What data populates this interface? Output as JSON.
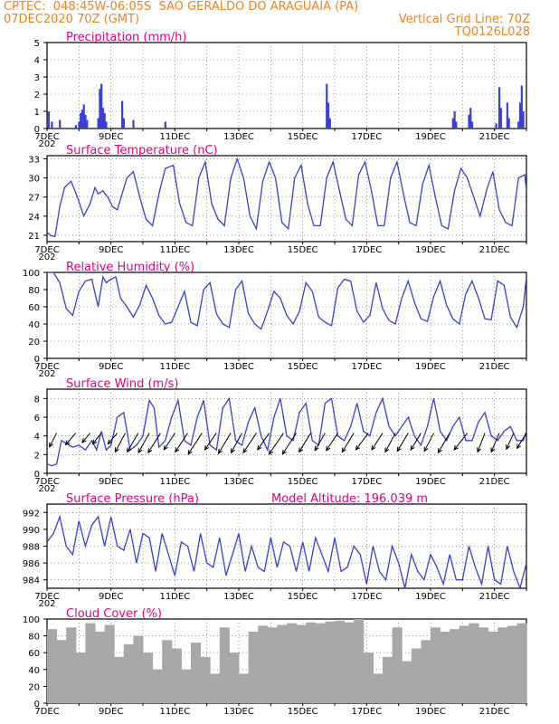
{
  "header": {
    "line1": "CPTEC:  048:45W-06:05S  SAO GERALDO DO ARAGUAIA (PA)",
    "line2_left": "07DEC2020 70Z (GMT)",
    "line2_right": "Vertical Grid Line: 70Z",
    "line3_right": "TQ0126L028"
  },
  "x_axis": {
    "tick_labels": [
      "7DEC",
      "9DEC",
      "11DEC",
      "13DEC",
      "15DEC",
      "17DEC",
      "19DEC",
      "21DEC"
    ],
    "overlap_label": "202"
  },
  "colors": {
    "line": "#3a3fd6",
    "title": "#e6007e",
    "header": "#f0821e",
    "cloud": "#a8a8a8"
  },
  "chart_data": [
    {
      "type": "bar",
      "title": "Precipitation (mm/h)",
      "ylim": [
        0,
        5
      ],
      "yticks": [
        "0",
        "1",
        "2",
        "3",
        "4",
        "5"
      ],
      "x_unit": "days since 7DEC 00Z",
      "bars": [
        [
          0.05,
          1.0
        ],
        [
          0.15,
          0.4
        ],
        [
          0.4,
          0.5
        ],
        [
          0.9,
          0.2
        ],
        [
          1.0,
          0.4
        ],
        [
          1.05,
          0.9
        ],
        [
          1.1,
          1.1
        ],
        [
          1.15,
          1.4
        ],
        [
          1.2,
          0.8
        ],
        [
          1.25,
          0.5
        ],
        [
          1.6,
          0.6
        ],
        [
          1.65,
          2.3
        ],
        [
          1.7,
          2.6
        ],
        [
          1.75,
          1.2
        ],
        [
          1.8,
          0.9
        ],
        [
          1.85,
          0.4
        ],
        [
          2.35,
          1.6
        ],
        [
          2.4,
          0.6
        ],
        [
          2.7,
          0.5
        ],
        [
          3.7,
          0.4
        ],
        [
          8.75,
          2.6
        ],
        [
          8.8,
          1.5
        ],
        [
          8.85,
          0.6
        ],
        [
          12.7,
          0.6
        ],
        [
          12.75,
          1.0
        ],
        [
          12.8,
          0.4
        ],
        [
          13.2,
          0.8
        ],
        [
          13.25,
          1.2
        ],
        [
          13.3,
          0.4
        ],
        [
          14.05,
          0.3
        ],
        [
          14.15,
          2.4
        ],
        [
          14.2,
          1.2
        ],
        [
          14.4,
          1.5
        ],
        [
          14.45,
          0.6
        ],
        [
          14.75,
          0.4
        ],
        [
          14.8,
          1.5
        ],
        [
          14.85,
          2.5
        ],
        [
          14.9,
          1.0
        ]
      ]
    },
    {
      "type": "line",
      "title": "Surface Temperature (nC)",
      "ylim": [
        20,
        33.5
      ],
      "yticks": [
        "21",
        "24",
        "27",
        "30",
        "33"
      ],
      "x": [
        0,
        0.1,
        0.25,
        0.4,
        0.55,
        0.75,
        0.95,
        1.15,
        1.35,
        1.5,
        1.6,
        1.75,
        1.9,
        2.05,
        2.2,
        2.35,
        2.5,
        2.7,
        2.9,
        3.1,
        3.3,
        3.5,
        3.7,
        3.95,
        4.15,
        4.35,
        4.55,
        4.75,
        4.95,
        5.15,
        5.35,
        5.55,
        5.75,
        5.95,
        6.15,
        6.35,
        6.55,
        6.75,
        6.95,
        7.15,
        7.35,
        7.55,
        7.75,
        7.95,
        8.15,
        8.35,
        8.55,
        8.75,
        8.95,
        9.15,
        9.35,
        9.55,
        9.75,
        9.95,
        10.15,
        10.35,
        10.55,
        10.75,
        10.95,
        11.15,
        11.35,
        11.55,
        11.75,
        11.95,
        12.15,
        12.35,
        12.55,
        12.75,
        12.95,
        13.15,
        13.35,
        13.55,
        13.75,
        13.95,
        14.15,
        14.35,
        14.55,
        14.75,
        14.95,
        15.0
      ],
      "values": [
        21.5,
        21,
        20.8,
        25.5,
        28.5,
        29.5,
        27,
        24,
        26,
        28.5,
        27.5,
        28,
        27,
        25.5,
        25,
        27.5,
        30,
        31,
        27,
        23.5,
        22.5,
        27.5,
        31.5,
        32,
        26,
        23,
        22.5,
        30,
        32.5,
        26,
        23.5,
        22.5,
        30,
        33,
        30,
        24,
        22,
        29.5,
        32.5,
        30,
        23,
        22,
        30,
        32,
        26,
        22.5,
        22.5,
        30,
        32.5,
        28,
        23.5,
        22.5,
        30.5,
        32.5,
        28,
        22.5,
        22.5,
        30,
        32.5,
        27.5,
        23,
        22.5,
        29,
        32,
        27,
        22.5,
        22,
        28,
        31.5,
        30,
        27,
        24,
        28,
        31,
        25,
        23,
        22.5,
        30,
        30.5,
        28
      ]
    },
    {
      "type": "line",
      "title": "Relative Humidity (%)",
      "ylim": [
        0,
        100
      ],
      "yticks": [
        "0",
        "20",
        "40",
        "60",
        "80",
        "100"
      ],
      "x": [
        0,
        0.2,
        0.4,
        0.6,
        0.8,
        1.0,
        1.2,
        1.4,
        1.6,
        1.75,
        1.85,
        2.0,
        2.15,
        2.3,
        2.5,
        2.7,
        2.9,
        3.1,
        3.3,
        3.5,
        3.7,
        3.9,
        4.1,
        4.3,
        4.5,
        4.7,
        4.9,
        5.1,
        5.3,
        5.5,
        5.7,
        5.9,
        6.1,
        6.3,
        6.5,
        6.7,
        6.9,
        7.1,
        7.3,
        7.5,
        7.7,
        7.9,
        8.1,
        8.3,
        8.5,
        8.7,
        8.9,
        9.1,
        9.3,
        9.5,
        9.7,
        9.9,
        10.1,
        10.3,
        10.5,
        10.7,
        10.9,
        11.1,
        11.3,
        11.5,
        11.7,
        11.9,
        12.1,
        12.3,
        12.5,
        12.7,
        12.9,
        13.1,
        13.3,
        13.5,
        13.7,
        13.9,
        14.1,
        14.3,
        14.5,
        14.7,
        14.9,
        15.0
      ],
      "values": [
        100,
        100,
        88,
        58,
        50,
        78,
        90,
        92,
        60,
        95,
        88,
        92,
        95,
        70,
        60,
        48,
        62,
        85,
        70,
        50,
        40,
        42,
        60,
        78,
        42,
        38,
        80,
        88,
        52,
        40,
        36,
        80,
        90,
        52,
        40,
        34,
        55,
        78,
        70,
        50,
        40,
        55,
        88,
        78,
        48,
        42,
        38,
        82,
        92,
        90,
        55,
        42,
        50,
        88,
        58,
        44,
        40,
        70,
        90,
        65,
        46,
        43,
        72,
        90,
        62,
        46,
        40,
        75,
        90,
        70,
        46,
        45,
        90,
        85,
        48,
        36,
        60,
        95
      ]
    },
    {
      "type": "line",
      "title": "Surface Wind (m/s)",
      "ylim": [
        0,
        9
      ],
      "yticks": [
        "0",
        "2",
        "4",
        "6",
        "8"
      ],
      "x": [
        0,
        0.15,
        0.3,
        0.45,
        0.6,
        0.8,
        1.0,
        1.2,
        1.4,
        1.55,
        1.7,
        1.85,
        2.0,
        2.2,
        2.4,
        2.6,
        2.8,
        3.0,
        3.2,
        3.35,
        3.5,
        3.7,
        3.9,
        4.1,
        4.3,
        4.5,
        4.7,
        4.9,
        5.1,
        5.3,
        5.5,
        5.7,
        5.9,
        6.1,
        6.3,
        6.5,
        6.7,
        6.9,
        7.1,
        7.3,
        7.5,
        7.7,
        7.9,
        8.1,
        8.3,
        8.5,
        8.7,
        8.9,
        9.1,
        9.3,
        9.5,
        9.7,
        9.9,
        10.1,
        10.3,
        10.5,
        10.7,
        10.9,
        11.1,
        11.3,
        11.5,
        11.7,
        11.9,
        12.1,
        12.3,
        12.5,
        12.7,
        12.9,
        13.1,
        13.3,
        13.5,
        13.7,
        13.9,
        14.1,
        14.3,
        14.5,
        14.7,
        14.9,
        15.0
      ],
      "values": [
        1.0,
        0.8,
        1.0,
        3.5,
        3.2,
        2.8,
        3.0,
        2.5,
        3.5,
        2.5,
        4.5,
        2.5,
        3.0,
        6.0,
        6.5,
        2.5,
        3.0,
        4.0,
        7.8,
        7.0,
        2.8,
        3.5,
        6.0,
        7.8,
        3.5,
        3.0,
        6.0,
        7.8,
        3.0,
        2.5,
        7.0,
        8.0,
        3.5,
        3.0,
        5.5,
        7.0,
        4.0,
        2.5,
        6.0,
        8.0,
        4.0,
        3.5,
        6.5,
        7.5,
        3.5,
        3.0,
        7.5,
        8.0,
        4.0,
        3.5,
        5.0,
        7.5,
        4.5,
        4.0,
        6.5,
        8.0,
        5.0,
        4.0,
        5.0,
        6.0,
        4.0,
        3.0,
        5.0,
        8.0,
        4.5,
        3.5,
        5.0,
        6.0,
        3.5,
        3.5,
        5.5,
        6.5,
        4.0,
        3.5,
        4.5,
        5.0,
        3.5,
        3.5,
        4.5
      ],
      "arrows": [
        [
          0.3,
          -1,
          -1.9
        ],
        [
          0.9,
          -1.4,
          -1.6
        ],
        [
          1.35,
          -1.1,
          -1.3
        ],
        [
          1.7,
          -1.2,
          -1.5
        ],
        [
          2.2,
          -1.3,
          -1.5
        ],
        [
          2.45,
          -1.4,
          -2.6
        ],
        [
          2.85,
          -1.5,
          -2.6
        ],
        [
          3.2,
          -1.5,
          -2.7
        ],
        [
          3.55,
          -1.7,
          -2.7
        ],
        [
          4.0,
          -1.5,
          -2.3
        ],
        [
          4.4,
          -1.7,
          -2.6
        ],
        [
          4.85,
          -1.9,
          -2.9
        ],
        [
          5.3,
          -1.6,
          -2.3
        ],
        [
          5.75,
          -1.7,
          -2.8
        ],
        [
          6.1,
          -1.5,
          -2.7
        ],
        [
          6.55,
          -1.8,
          -2.7
        ],
        [
          6.95,
          -1.6,
          -2.3
        ],
        [
          7.4,
          -2.0,
          -2.9
        ],
        [
          7.8,
          -1.9,
          -2.9
        ],
        [
          8.25,
          -1.6,
          -2.6
        ],
        [
          8.7,
          -1.4,
          -2.4
        ],
        [
          9.1,
          -1.6,
          -2.4
        ],
        [
          9.6,
          -1.6,
          -2.6
        ],
        [
          10.05,
          -1.7,
          -2.3
        ],
        [
          10.5,
          -1.5,
          -2.3
        ],
        [
          10.9,
          -1.4,
          -2.6
        ],
        [
          11.3,
          -1.5,
          -2.5
        ],
        [
          11.7,
          -1.4,
          -2.3
        ],
        [
          12.1,
          -1.3,
          -2.5
        ],
        [
          12.6,
          -1.6,
          -2.7
        ],
        [
          13.15,
          -1.8,
          -2.3
        ],
        [
          13.7,
          -1.0,
          -2.6
        ],
        [
          14.15,
          -1.1,
          -2.6
        ],
        [
          14.6,
          -1.0,
          -2.2
        ],
        [
          15.0,
          -1.3,
          -2.1
        ]
      ]
    },
    {
      "type": "line",
      "title": "Surface Pressure (hPa)",
      "subtitle": "Model Altitude: 196.039 m",
      "ylim": [
        983,
        993
      ],
      "yticks": [
        "984",
        "986",
        "988",
        "990",
        "992"
      ],
      "x": [
        0,
        0.2,
        0.4,
        0.6,
        0.8,
        1.0,
        1.2,
        1.4,
        1.6,
        1.8,
        2.0,
        2.2,
        2.4,
        2.6,
        2.8,
        3.0,
        3.2,
        3.4,
        3.6,
        3.8,
        4.0,
        4.2,
        4.4,
        4.6,
        4.8,
        5.0,
        5.2,
        5.4,
        5.6,
        5.8,
        6.0,
        6.2,
        6.4,
        6.6,
        6.8,
        7.0,
        7.2,
        7.4,
        7.6,
        7.8,
        8.0,
        8.2,
        8.4,
        8.6,
        8.8,
        9.0,
        9.2,
        9.4,
        9.6,
        9.8,
        10.0,
        10.2,
        10.4,
        10.6,
        10.8,
        11.0,
        11.2,
        11.4,
        11.6,
        11.8,
        12.0,
        12.2,
        12.4,
        12.6,
        12.8,
        13.0,
        13.2,
        13.4,
        13.6,
        13.8,
        14.0,
        14.2,
        14.4,
        14.6,
        14.8,
        15.0
      ],
      "values": [
        988.5,
        989.5,
        991.5,
        988,
        987,
        991,
        988,
        990.5,
        991.5,
        988,
        991.5,
        988,
        987.5,
        990,
        986,
        989.5,
        989,
        985,
        989.5,
        987,
        984.5,
        988.5,
        988,
        985,
        989.5,
        986,
        985.5,
        989,
        984.5,
        987,
        989.5,
        985,
        988,
        985.5,
        985,
        989,
        985.5,
        988.5,
        988,
        985,
        988.5,
        985,
        989,
        987,
        985,
        989,
        985,
        985.5,
        988,
        987,
        983.5,
        988,
        985,
        984,
        988,
        986,
        983,
        987,
        985,
        984,
        987,
        985.5,
        983.5,
        987,
        984,
        984,
        988,
        985.5,
        983.5,
        988,
        984,
        983.5,
        988,
        985,
        983,
        986
      ]
    },
    {
      "type": "bar",
      "title": "Cloud Cover (%)",
      "ylim": [
        0,
        100
      ],
      "yticks": [
        "0",
        "20",
        "40",
        "60",
        "80",
        "100"
      ],
      "x": [
        0,
        0.3,
        0.6,
        0.9,
        1.2,
        1.5,
        1.8,
        2.1,
        2.4,
        2.7,
        3.0,
        3.3,
        3.6,
        3.9,
        4.2,
        4.5,
        4.8,
        5.1,
        5.4,
        5.7,
        6.0,
        6.3,
        6.6,
        6.9,
        7.2,
        7.5,
        7.8,
        8.1,
        8.4,
        8.7,
        9.0,
        9.3,
        9.6,
        9.9,
        10.2,
        10.5,
        10.8,
        11.1,
        11.4,
        11.7,
        12.0,
        12.3,
        12.6,
        12.9,
        13.2,
        13.5,
        13.8,
        14.1,
        14.4,
        14.7
      ],
      "values": [
        88,
        75,
        90,
        60,
        95,
        85,
        93,
        55,
        70,
        80,
        60,
        40,
        75,
        65,
        40,
        72,
        55,
        35,
        90,
        60,
        35,
        85,
        92,
        90,
        93,
        95,
        93,
        96,
        95,
        97,
        98,
        96,
        100,
        60,
        35,
        55,
        90,
        50,
        65,
        75,
        90,
        85,
        88,
        92,
        95,
        90,
        85,
        90,
        92,
        95
      ]
    }
  ]
}
